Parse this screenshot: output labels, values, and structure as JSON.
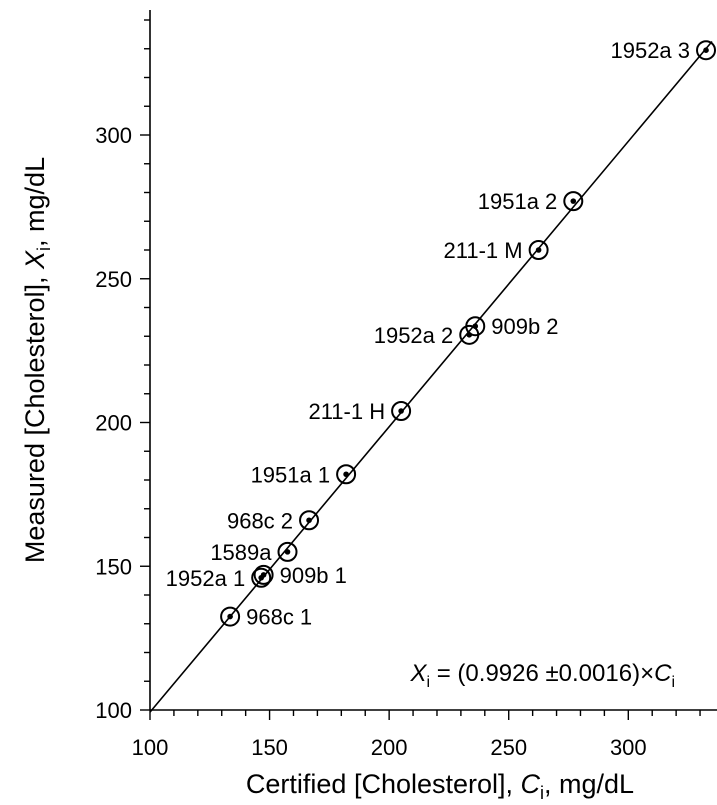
{
  "chart_data": {
    "type": "scatter",
    "xlabel": {
      "prefix": "Certified [Cholesterol], ",
      "var": "C",
      "sub": "i",
      "suffix": ", mg/dL"
    },
    "ylabel": {
      "prefix": "Measured [Cholesterol], ",
      "var": "X",
      "sub": "i",
      "suffix": ", mg/dL"
    },
    "xlim": [
      100,
      335
    ],
    "ylim": [
      100,
      340
    ],
    "xticks": [
      100,
      150,
      200,
      250,
      300
    ],
    "yticks": [
      100,
      150,
      200,
      250,
      300
    ],
    "xtick_labels": [
      "100",
      "150",
      "200",
      "250",
      "300"
    ],
    "ytick_labels": [
      "100",
      "150",
      "200",
      "250",
      "300"
    ],
    "grid": false,
    "fit": {
      "slope": 0.9926,
      "label": {
        "lhs_var": "X",
        "lhs_sub": "i",
        "mid": " = (0.9926 ±0.0016)×",
        "rhs_var": "C",
        "rhs_sub": "i"
      }
    },
    "points": [
      {
        "label": "968c 1",
        "x": 133.5,
        "y": 132.5,
        "label_side": "right"
      },
      {
        "label": "1952a 1",
        "x": 146.5,
        "y": 146.0,
        "label_side": "left"
      },
      {
        "label": "909b 1",
        "x": 147.5,
        "y": 147.0,
        "label_side": "right"
      },
      {
        "label": "1589a",
        "x": 157.5,
        "y": 155.0,
        "label_side": "left"
      },
      {
        "label": "968c 2",
        "x": 166.5,
        "y": 166.0,
        "label_side": "left"
      },
      {
        "label": "1951a 1",
        "x": 182.0,
        "y": 182.0,
        "label_side": "left"
      },
      {
        "label": "211-1 H",
        "x": 205.0,
        "y": 204.0,
        "label_side": "left"
      },
      {
        "label": "1952a 2",
        "x": 233.5,
        "y": 230.5,
        "label_side": "left"
      },
      {
        "label": "909b 2",
        "x": 236.0,
        "y": 233.5,
        "label_side": "right"
      },
      {
        "label": "211-1 M",
        "x": 262.5,
        "y": 260.0,
        "label_side": "left"
      },
      {
        "label": "1951a 2",
        "x": 277.0,
        "y": 277.0,
        "label_side": "left"
      },
      {
        "label": "1952a 3",
        "x": 332.5,
        "y": 329.5,
        "label_side": "left"
      }
    ]
  }
}
